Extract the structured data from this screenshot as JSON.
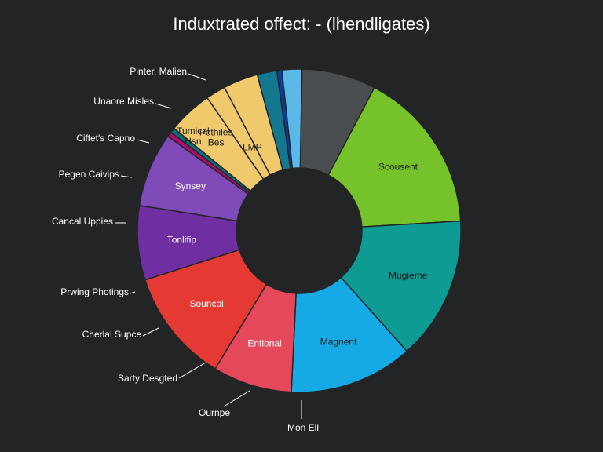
{
  "chart_data": {
    "type": "pie",
    "title": "Induxtrated offect: - (lhendligates)",
    "donut": true,
    "slices": [
      {
        "label": "",
        "value": 7.5,
        "color": "#4a4d50"
      },
      {
        "label": "Scousent",
        "value": 16.5,
        "color": "#76c22b"
      },
      {
        "label": "Mugieme",
        "value": 14.5,
        "color": "#0e9b93"
      },
      {
        "label": "Magnent",
        "value": 12.5,
        "color": "#15a9e5"
      },
      {
        "label": "Entional",
        "value": 8.0,
        "color": "#e5475b"
      },
      {
        "label": "Souncal",
        "value": 11.5,
        "color": "#e53a34"
      },
      {
        "label": "Tonlifip",
        "value": 7.5,
        "color": "#6f2fa3"
      },
      {
        "label": "Synsey",
        "value": 7.5,
        "color": "#7f4bb8"
      },
      {
        "label": "",
        "value": 0.5,
        "color": "#b00c6e"
      },
      {
        "label": "",
        "value": 0.5,
        "color": "#0b6d73"
      },
      {
        "label": "Tumical Hsn",
        "value": 4.5,
        "color": "#f0c96c"
      },
      {
        "label": "Pothiles Bes",
        "value": 2.0,
        "color": "#f0c96c"
      },
      {
        "label": "LMP",
        "value": 3.5,
        "color": "#f0c96c"
      },
      {
        "label": "",
        "value": 2.0,
        "color": "#137790"
      },
      {
        "label": "",
        "value": 0.5,
        "color": "#0b3f9e"
      },
      {
        "label": "",
        "value": 2.0,
        "color": "#5bb9ea"
      }
    ],
    "outer_labels": [
      "Pinter, Malien",
      "Unaore Misles",
      "Ciffet's Capno",
      "Pegen Caivips",
      "Cancal Uppies",
      "Prwing Photings",
      "Cherlal Supce",
      "Sarty Desgted",
      "Ournpe",
      "Mon Ell"
    ]
  }
}
